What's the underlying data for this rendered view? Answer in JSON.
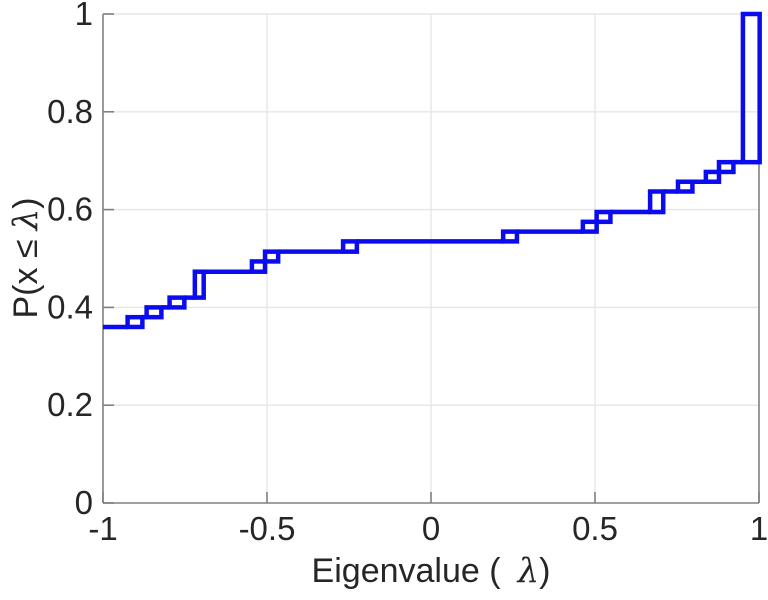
{
  "figure": {
    "xlabel": {
      "prefix": "Eigenvalue (",
      "symbol": "λ",
      "close": ")"
    },
    "ylabel": {
      "prefix": "P(x ≤",
      "symbol": "λ",
      "close": ")"
    }
  },
  "chart_data": {
    "type": "line",
    "subtype": "empirical-cdf-stairs",
    "title": "",
    "xlabel": "Eigenvalue (λ)",
    "ylabel": "P(x ≤ λ)",
    "xlim": [
      -1,
      1
    ],
    "ylim": [
      0,
      1
    ],
    "x_ticks": {
      "values": [
        -1,
        -0.5,
        0,
        0.5,
        1
      ],
      "labels": [
        "-1",
        "-0.5",
        "0",
        "0.5",
        "1"
      ]
    },
    "y_ticks": {
      "values": [
        0,
        0.2,
        0.4,
        0.6,
        0.8,
        1
      ],
      "labels": [
        "0",
        "0.2",
        "0.4",
        "0.6",
        "0.8",
        "1"
      ]
    },
    "grid": true,
    "legend": null,
    "colors": {
      "line": "#0B0BEF",
      "frame": "#808080",
      "grid": "#E6E6E6",
      "text": "#262626"
    },
    "start": {
      "x": -1,
      "y": 0.36
    },
    "steps": [
      {
        "x": -0.925,
        "y": 0.38,
        "w": 0.045
      },
      {
        "x": -0.867,
        "y": 0.4,
        "w": 0.045
      },
      {
        "x": -0.797,
        "y": 0.42,
        "w": 0.045
      },
      {
        "x": -0.72,
        "y": 0.473,
        "w": 0.027
      },
      {
        "x": -0.546,
        "y": 0.494,
        "w": 0.04
      },
      {
        "x": -0.506,
        "y": 0.514,
        "w": 0.04
      },
      {
        "x": -0.268,
        "y": 0.535,
        "w": 0.042
      },
      {
        "x": 0.22,
        "y": 0.555,
        "w": 0.042
      },
      {
        "x": 0.463,
        "y": 0.575,
        "w": 0.042
      },
      {
        "x": 0.505,
        "y": 0.595,
        "w": 0.042
      },
      {
        "x": 0.668,
        "y": 0.637,
        "w": 0.04
      },
      {
        "x": 0.753,
        "y": 0.657,
        "w": 0.044
      },
      {
        "x": 0.838,
        "y": 0.677,
        "w": 0.04
      },
      {
        "x": 0.878,
        "y": 0.697,
        "w": 0.044
      },
      {
        "x": 0.951,
        "y": 1.0,
        "w": 0.051
      }
    ]
  }
}
